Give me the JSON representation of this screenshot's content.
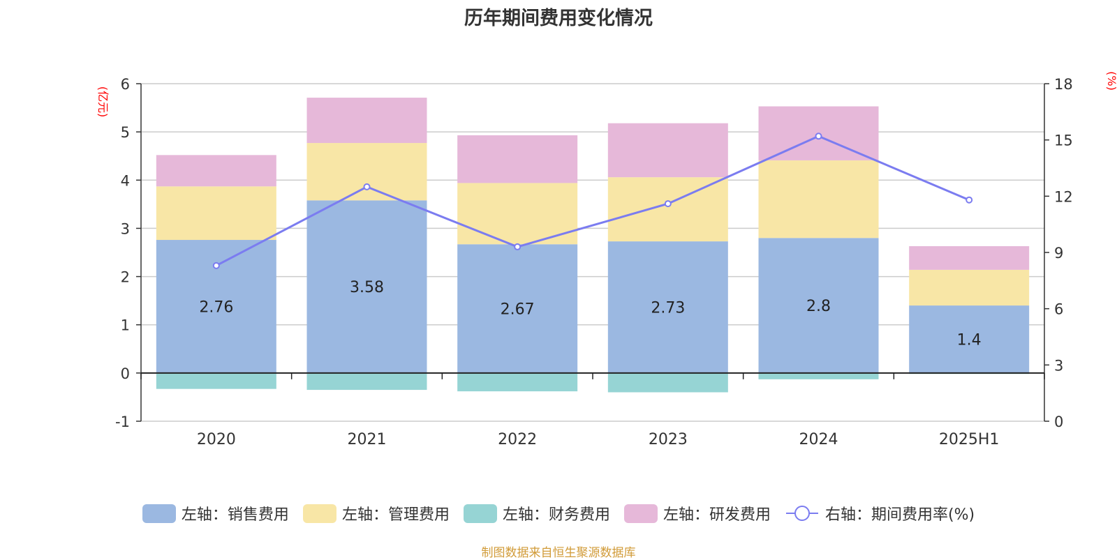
{
  "title": "历年期间费用变化情况",
  "left_unit": "(亿元)",
  "right_unit": "(%)",
  "footer": "制图数据来自恒生聚源数据库",
  "chart_data": {
    "type": "bar",
    "stacked": true,
    "title": "历年期间费用变化情况",
    "categories": [
      "2020",
      "2021",
      "2022",
      "2023",
      "2024",
      "2025H1"
    ],
    "left_axis": {
      "label": "(亿元)",
      "ylim": [
        -1,
        6
      ],
      "ticks": [
        -1,
        0,
        1,
        2,
        3,
        4,
        5,
        6
      ]
    },
    "right_axis": {
      "label": "(%)",
      "ylim": [
        0,
        18
      ],
      "ticks": [
        0,
        3,
        6,
        9,
        12,
        15,
        18
      ]
    },
    "grid": true,
    "legend_position": "bottom",
    "series": [
      {
        "name": "左轴：销售费用",
        "type": "bar",
        "axis": "left",
        "color": "#9bb8e1",
        "values": [
          2.76,
          3.58,
          2.67,
          2.73,
          2.8,
          1.4
        ],
        "labels": [
          "2.76",
          "3.58",
          "2.67",
          "2.73",
          "2.8",
          "1.4"
        ]
      },
      {
        "name": "左轴：管理费用",
        "type": "bar",
        "axis": "left",
        "color": "#f8e6a6",
        "values": [
          1.11,
          1.19,
          1.27,
          1.33,
          1.61,
          0.74
        ]
      },
      {
        "name": "左轴：财务费用",
        "type": "bar",
        "axis": "left",
        "color": "#96d4d4",
        "values": [
          -0.33,
          -0.35,
          -0.38,
          -0.4,
          -0.13,
          -0.02
        ]
      },
      {
        "name": "左轴：研发费用",
        "type": "bar",
        "axis": "left",
        "color": "#e6b8d9",
        "values": [
          0.65,
          0.94,
          0.99,
          1.12,
          1.12,
          0.49
        ]
      },
      {
        "name": "右轴：期间费用率(%)",
        "type": "line",
        "axis": "right",
        "color": "#7b7cf0",
        "values": [
          8.3,
          12.5,
          9.3,
          11.6,
          15.2,
          11.8
        ]
      }
    ]
  }
}
